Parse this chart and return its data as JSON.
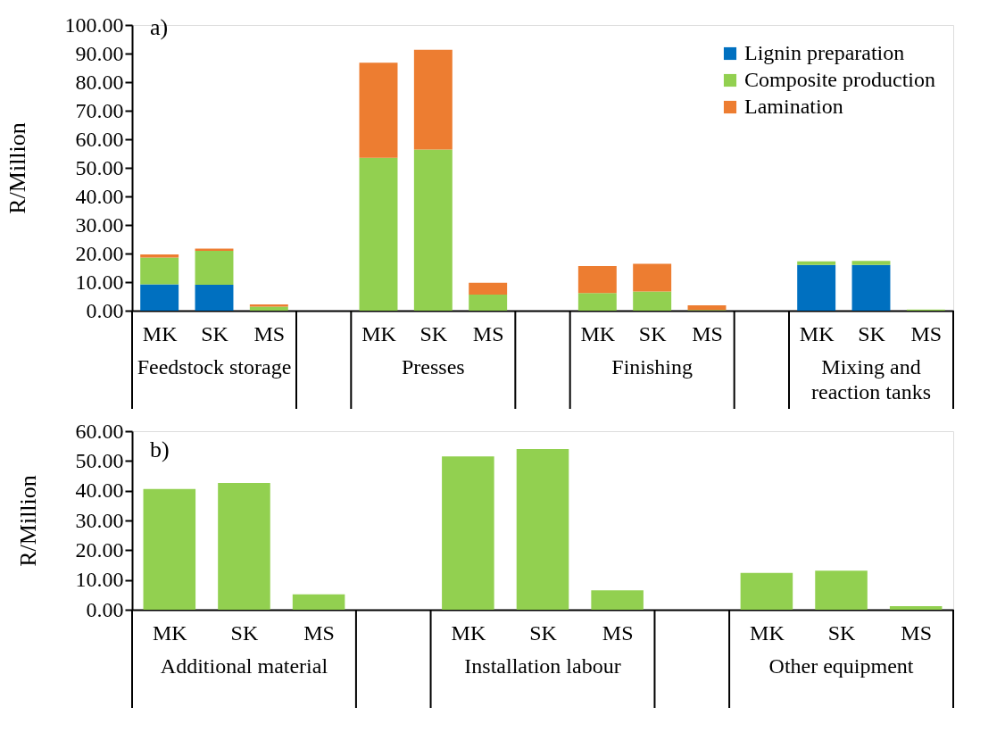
{
  "chart_data": [
    {
      "type": "bar",
      "stacked": true,
      "ylabel": "R/Million",
      "categories": [
        "MK",
        "SK",
        "MS",
        null,
        "MK",
        "SK",
        "MS",
        null,
        "MK",
        "SK",
        "MS",
        null,
        "MK",
        "SK",
        "MS"
      ],
      "annotations": [
        "a)",
        "Feedstock storage",
        "Presses",
        "Finishing",
        "Mixing and reaction tanks"
      ],
      "series": [
        {
          "name": "Lignin preparation",
          "color": "#0070c0",
          "values": [
            9.2,
            9.1,
            null,
            null,
            null,
            null,
            null,
            null,
            null,
            null,
            null,
            null,
            16.0,
            16.0,
            null
          ]
        },
        {
          "name": "Composite production",
          "color": "#92d050",
          "values": [
            9.4,
            11.8,
            1.4,
            null,
            53.5,
            56.4,
            5.6,
            null,
            6.2,
            6.7,
            0.2,
            null,
            1.3,
            1.4,
            0.4
          ]
        },
        {
          "name": "Lamination",
          "color": "#ed7d31",
          "values": [
            1.1,
            0.8,
            0.8,
            null,
            33.3,
            34.9,
            4.2,
            null,
            9.4,
            9.7,
            1.7,
            null,
            null,
            null,
            null
          ]
        }
      ],
      "ylim": [
        0,
        100
      ],
      "yticks": [
        {
          "value": 0,
          "label": "0.00"
        },
        {
          "value": 10,
          "label": "10.00"
        },
        {
          "value": 20,
          "label": "20.00"
        },
        {
          "value": 30,
          "label": "30.00"
        },
        {
          "value": 40,
          "label": "40.00"
        },
        {
          "value": 50,
          "label": "50.00"
        },
        {
          "value": 60,
          "label": "60.00"
        },
        {
          "value": 70,
          "label": "70.00"
        },
        {
          "value": 80,
          "label": "80.00"
        },
        {
          "value": 90,
          "label": "90.00"
        },
        {
          "value": 100,
          "label": "100.00"
        }
      ],
      "legend": "top right",
      "grid": false
    },
    {
      "type": "bar",
      "ylabel": "R/Million",
      "categories": [
        "MK",
        "SK",
        "MS",
        null,
        "MK",
        "SK",
        "MS",
        null,
        "MK",
        "SK",
        "MS"
      ],
      "annotations": [
        "b)",
        "Additional material",
        "Installation labour",
        "Other equipment"
      ],
      "series": [
        {
          "color": "#92d050",
          "values": [
            40.6,
            42.6,
            5.2,
            null,
            51.5,
            54.0,
            6.5,
            null,
            12.4,
            13.1,
            1.2
          ]
        }
      ],
      "ylim": [
        0,
        60
      ],
      "yticks": [
        {
          "value": 0,
          "label": "0.00"
        },
        {
          "value": 10,
          "label": "10.00"
        },
        {
          "value": 20,
          "label": "20.00"
        },
        {
          "value": 30,
          "label": "30.00"
        },
        {
          "value": 40,
          "label": "40.00"
        },
        {
          "value": 50,
          "label": "50.00"
        },
        {
          "value": 60,
          "label": "60.00"
        }
      ],
      "legend": false,
      "grid": false
    }
  ]
}
